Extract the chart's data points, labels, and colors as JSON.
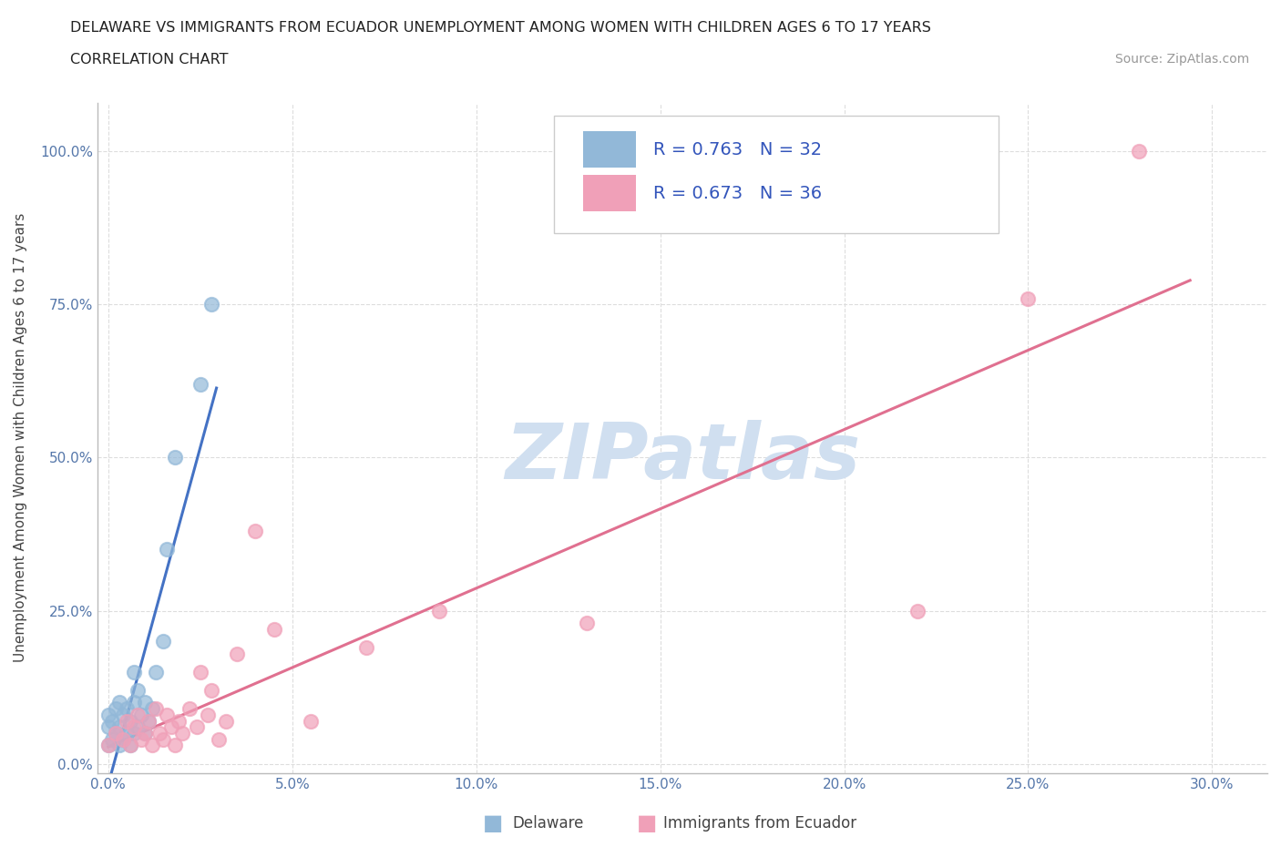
{
  "title_line1": "DELAWARE VS IMMIGRANTS FROM ECUADOR UNEMPLOYMENT AMONG WOMEN WITH CHILDREN AGES 6 TO 17 YEARS",
  "title_line2": "CORRELATION CHART",
  "source": "Source: ZipAtlas.com",
  "xlabel_ticks": [
    0.0,
    0.05,
    0.1,
    0.15,
    0.2,
    0.25,
    0.3
  ],
  "ylabel_ticks": [
    0.0,
    0.25,
    0.5,
    0.75,
    1.0
  ],
  "xlim": [
    -0.003,
    0.315
  ],
  "ylim": [
    -0.015,
    1.08
  ],
  "R_delaware": 0.763,
  "N_delaware": 32,
  "R_ecuador": 0.673,
  "N_ecuador": 36,
  "delaware_color": "#92b8d8",
  "ecuador_color": "#f0a0b8",
  "delaware_line_color": "#4472c4",
  "ecuador_line_color": "#e07090",
  "watermark": "ZIPatlas",
  "watermark_color": "#d0dff0",
  "legend_label_delaware": "Delaware",
  "legend_label_ecuador": "Immigrants from Ecuador",
  "delaware_points_x": [
    0.0,
    0.0,
    0.0,
    0.001,
    0.001,
    0.002,
    0.002,
    0.003,
    0.003,
    0.003,
    0.004,
    0.004,
    0.005,
    0.005,
    0.006,
    0.006,
    0.007,
    0.007,
    0.007,
    0.008,
    0.008,
    0.009,
    0.01,
    0.01,
    0.011,
    0.012,
    0.013,
    0.015,
    0.016,
    0.018,
    0.025,
    0.028
  ],
  "delaware_points_y": [
    0.03,
    0.06,
    0.08,
    0.04,
    0.07,
    0.05,
    0.09,
    0.03,
    0.06,
    0.1,
    0.04,
    0.08,
    0.05,
    0.09,
    0.03,
    0.07,
    0.05,
    0.1,
    0.15,
    0.06,
    0.12,
    0.08,
    0.05,
    0.1,
    0.07,
    0.09,
    0.15,
    0.2,
    0.35,
    0.5,
    0.62,
    0.75
  ],
  "ecuador_points_x": [
    0.0,
    0.002,
    0.004,
    0.005,
    0.006,
    0.007,
    0.008,
    0.009,
    0.01,
    0.011,
    0.012,
    0.013,
    0.014,
    0.015,
    0.016,
    0.017,
    0.018,
    0.019,
    0.02,
    0.022,
    0.024,
    0.025,
    0.027,
    0.028,
    0.03,
    0.032,
    0.035,
    0.04,
    0.045,
    0.055,
    0.07,
    0.09,
    0.13,
    0.22,
    0.25,
    0.28
  ],
  "ecuador_points_y": [
    0.03,
    0.05,
    0.04,
    0.07,
    0.03,
    0.06,
    0.08,
    0.04,
    0.05,
    0.07,
    0.03,
    0.09,
    0.05,
    0.04,
    0.08,
    0.06,
    0.03,
    0.07,
    0.05,
    0.09,
    0.06,
    0.15,
    0.08,
    0.12,
    0.04,
    0.07,
    0.18,
    0.38,
    0.22,
    0.07,
    0.19,
    0.25,
    0.23,
    0.25,
    0.76,
    1.0
  ]
}
